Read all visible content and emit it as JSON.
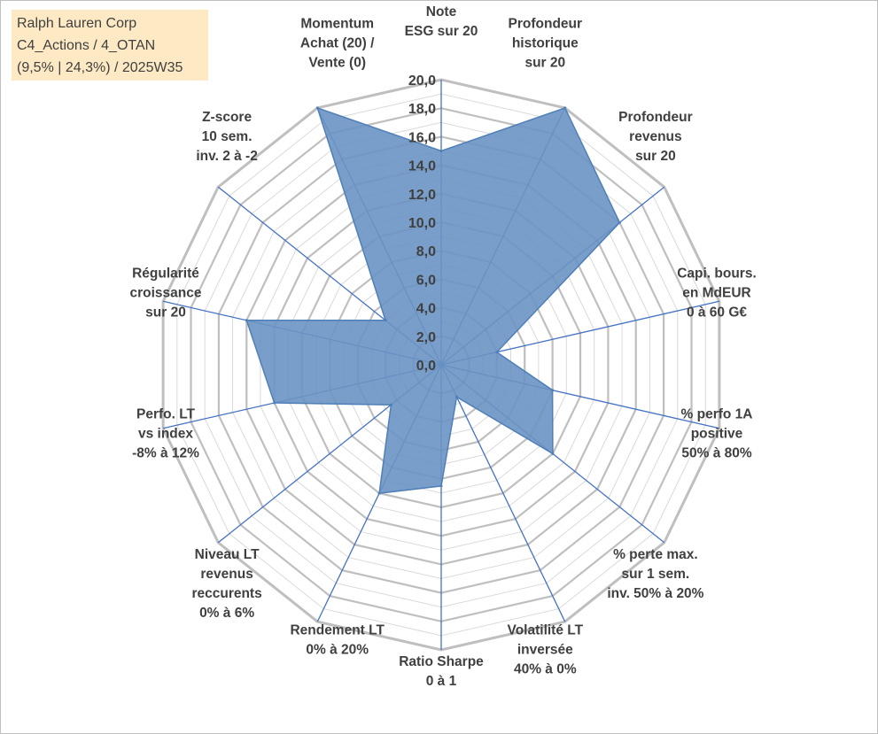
{
  "header": {
    "line1": "Ralph Lauren Corp",
    "line2": "C4_Actions / 4_OTAN",
    "line3": "(9,5% | 24,3%) / 2025W35"
  },
  "chart_data": {
    "type": "radar",
    "r_min": 0,
    "r_max": 20,
    "r_ticks": [
      "0,0",
      "2,0",
      "4,0",
      "6,0",
      "8,0",
      "10,0",
      "12,0",
      "14,0",
      "16,0",
      "18,0",
      "20,0"
    ],
    "categories": [
      {
        "label": [
          "Note",
          "ESG sur 20"
        ],
        "value": 15
      },
      {
        "label": [
          "Profondeur",
          "historique",
          "sur 20"
        ],
        "value": 20
      },
      {
        "label": [
          "Profondeur",
          "revenus",
          "sur 20"
        ],
        "value": 16
      },
      {
        "label": [
          "Capi. bours.",
          "en MdEUR",
          "0 à 60 G€"
        ],
        "value": 4
      },
      {
        "label": [
          "% perfo 1A",
          "positive",
          "50% à 80%"
        ],
        "value": 8
      },
      {
        "label": [
          "% perte max.",
          "sur 1 sem.",
          "inv. 50% à 20%"
        ],
        "value": 10
      },
      {
        "label": [
          "Volatilité LT",
          "inversée",
          "40% à 0%"
        ],
        "value": 2.5
      },
      {
        "label": [
          "Ratio Sharpe",
          "0 à 1"
        ],
        "value": 8.5
      },
      {
        "label": [
          "Rendement LT",
          "0% à 20%"
        ],
        "value": 10
      },
      {
        "label": [
          "Niveau LT",
          "revenus",
          "reccurents",
          "0% à 6%"
        ],
        "value": 4.5
      },
      {
        "label": [
          "Perfo. LT",
          "vs index",
          "-8% à 12%"
        ],
        "value": 12
      },
      {
        "label": [
          "Régularité",
          "croissance",
          "sur 20"
        ],
        "value": 14
      },
      {
        "label": [
          "Z-score",
          "10 sem.",
          "inv. 2 à -2"
        ],
        "value": 5
      },
      {
        "label": [
          "Momentum",
          "Achat (20) /",
          "Vente (0)"
        ],
        "value": 20
      }
    ],
    "colors": {
      "fill": "#6a93c3",
      "stroke": "#4f7fb8",
      "spoke": "#4472c4",
      "grid_major": "#bfbfbf",
      "grid_minor": "#d9d9d9",
      "text": "#404040"
    },
    "grid": true,
    "legend": "none"
  }
}
